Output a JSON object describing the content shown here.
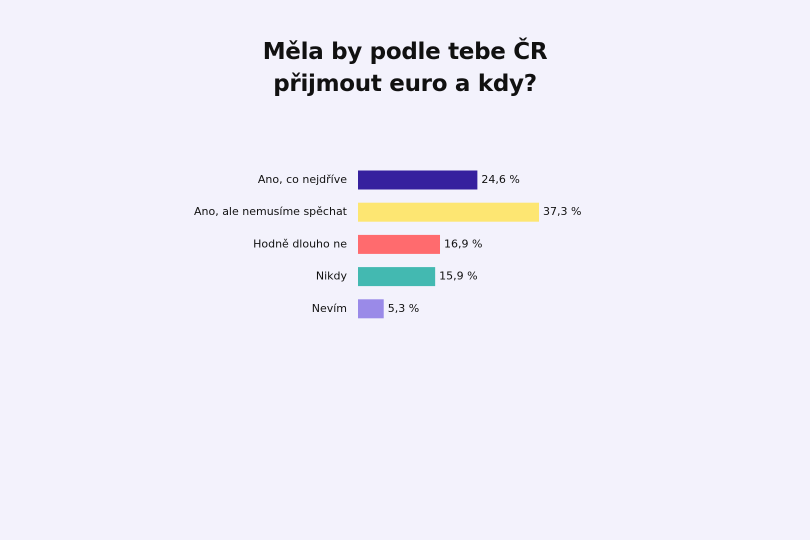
{
  "chart_data": {
    "type": "hbar",
    "title": "Měla by podle tebe ČR přijmout euro a kdy?",
    "categories": [
      "Ano, co nejdříve",
      "Ano, ale nemusíme spěchat",
      "Hodně dlouho ne",
      "Nikdy",
      "Nevím"
    ],
    "values": [
      24.6,
      37.3,
      16.9,
      15.9,
      5.3
    ],
    "value_labels": [
      "24,6 %",
      "37,3 %",
      "16,9 %",
      "15,9 %",
      "5,3 %"
    ],
    "colors": [
      "#36209e",
      "#fde672",
      "#ff6b6e",
      "#43b9b1",
      "#9a8ae8"
    ]
  }
}
